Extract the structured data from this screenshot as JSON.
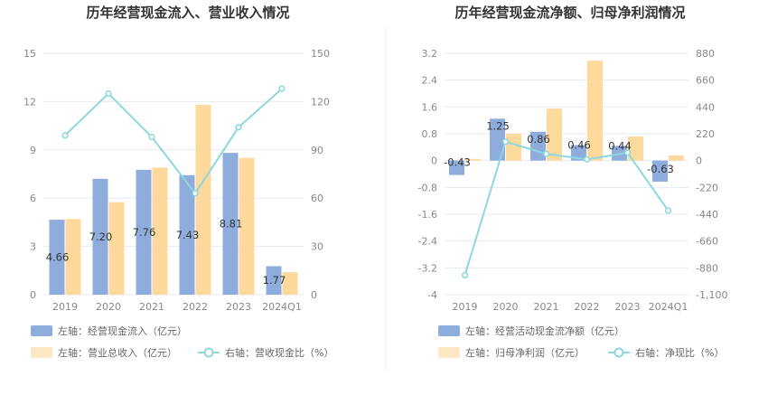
{
  "colors": {
    "bar_blue": "#8eacdc",
    "bar_orange": "#fdd99c",
    "line_teal": "#8dd7de",
    "grid": "#e6e9ef",
    "divider": "#eeeeee"
  },
  "chart_data": [
    {
      "type": "bar+line",
      "title": "历年经营现金流入、营业收入情况",
      "categories": [
        "2019",
        "2020",
        "2021",
        "2022",
        "2023",
        "2024Q1"
      ],
      "left_axis": {
        "ticks": [
          "0",
          "3",
          "6",
          "9",
          "12",
          "15"
        ],
        "ylim": [
          0,
          15
        ]
      },
      "right_axis": {
        "ticks": [
          "0",
          "30",
          "60",
          "90",
          "120",
          "150"
        ],
        "ylim": [
          0,
          150
        ]
      },
      "series": [
        {
          "name": "经营现金流入",
          "axis": "left",
          "type": "bar",
          "values": [
            4.66,
            7.2,
            7.76,
            7.43,
            8.81,
            1.77
          ],
          "labels": [
            "4.66",
            "7.20",
            "7.76",
            "7.43",
            "8.81",
            "1.77"
          ]
        },
        {
          "name": "营业总收入",
          "axis": "left",
          "type": "bar",
          "values": [
            4.7,
            5.75,
            7.9,
            11.8,
            8.5,
            1.4
          ]
        },
        {
          "name": "营收现金比",
          "axis": "right",
          "type": "line",
          "values": [
            99,
            125,
            98,
            63,
            104,
            128
          ]
        }
      ],
      "legend": [
        {
          "text": "左轴：经营现金流入（亿元）",
          "kind": "bar_blue"
        },
        {
          "text": "左轴：营业总收入（亿元）",
          "kind": "bar_orange"
        },
        {
          "text": "右轴：营收现金比（%）",
          "kind": "line"
        }
      ]
    },
    {
      "type": "bar+line",
      "title": "历年经营现金流净额、归母净利润情况",
      "categories": [
        "2019",
        "2020",
        "2021",
        "2022",
        "2023",
        "2024Q1"
      ],
      "left_axis": {
        "ticks": [
          "-4",
          "-3.2",
          "-2.4",
          "-1.6",
          "-0.8",
          "0",
          "0.8",
          "1.6",
          "2.4",
          "3.2"
        ],
        "ylim": [
          -4,
          3.2
        ]
      },
      "right_axis": {
        "ticks": [
          "-1,100",
          "-880",
          "-660",
          "-440",
          "-220",
          "0",
          "220",
          "440",
          "660",
          "880"
        ],
        "ylim": [
          -1100,
          880
        ]
      },
      "series": [
        {
          "name": "经营活动现金流净额",
          "axis": "left",
          "type": "bar",
          "values": [
            -0.43,
            1.25,
            0.86,
            0.46,
            0.44,
            -0.63
          ],
          "labels": [
            "-0.43",
            "1.25",
            "0.86",
            "0.46",
            "0.44",
            "-0.63"
          ]
        },
        {
          "name": "归母净利润",
          "axis": "left",
          "type": "bar",
          "values": [
            0.05,
            0.8,
            1.55,
            2.98,
            0.72,
            0.15
          ]
        },
        {
          "name": "净现比",
          "axis": "right",
          "type": "line",
          "values": [
            -940,
            155,
            55,
            10,
            65,
            -410
          ]
        }
      ],
      "legend": [
        {
          "text": "左轴：经营活动现金流净额（亿元）",
          "kind": "bar_blue"
        },
        {
          "text": "左轴：归母净利润（亿元）",
          "kind": "bar_orange"
        },
        {
          "text": "右轴：净现比（%）",
          "kind": "line"
        }
      ]
    }
  ]
}
